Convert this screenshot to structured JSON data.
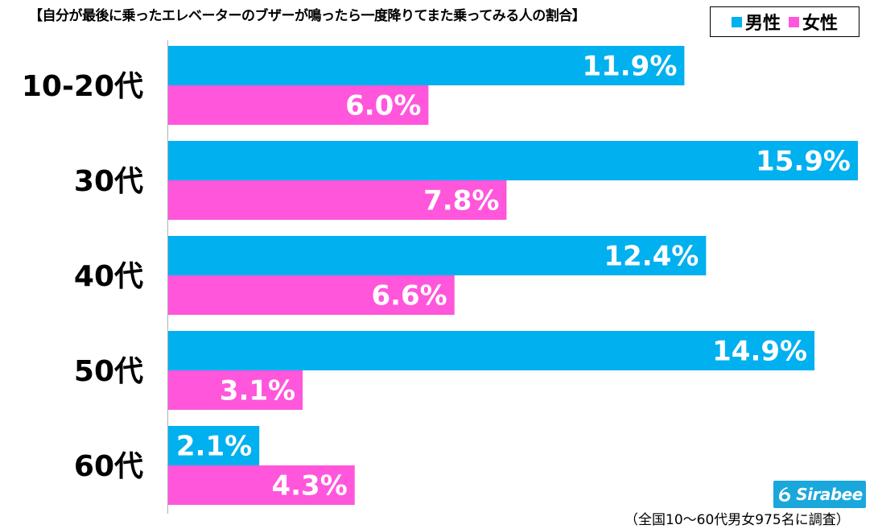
{
  "chart_data": {
    "type": "bar",
    "orientation": "horizontal",
    "title": "【自分が最後に乗ったエレベーターのブザーが鳴ったら一度降りてまた乗ってみる人の割合】",
    "categories": [
      "10-20代",
      "30代",
      "40代",
      "50代",
      "60代"
    ],
    "series": [
      {
        "name": "男性",
        "color": "#00b0ef",
        "values": [
          11.9,
          15.9,
          12.4,
          14.9,
          2.1
        ],
        "labels": [
          "11.9%",
          "15.9%",
          "12.4%",
          "14.9%",
          "2.1%"
        ]
      },
      {
        "name": "女性",
        "color": "#ff56dc",
        "values": [
          6.0,
          7.8,
          6.6,
          3.1,
          4.3
        ],
        "labels": [
          "6.0%",
          "7.8%",
          "6.6%",
          "3.1%",
          "4.3%"
        ]
      }
    ],
    "xlim": [
      0,
      16
    ],
    "legend": "top-right",
    "grid": false,
    "footnote": "（全国10〜60代男女975名に調査）"
  },
  "branding": {
    "logo_text": "Sirabee",
    "logo_color": "#1aa7dc"
  }
}
